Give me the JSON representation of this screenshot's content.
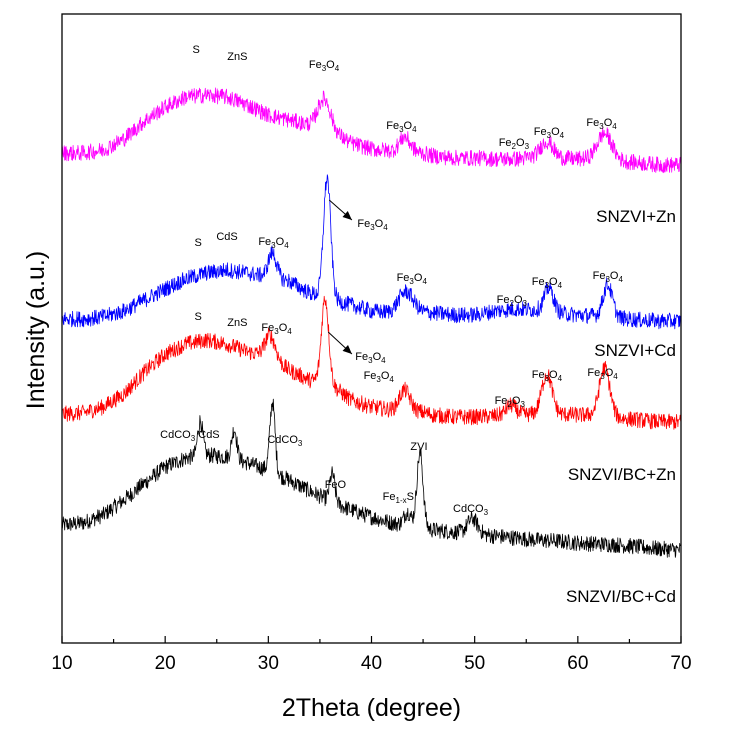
{
  "chart_data": {
    "type": "line",
    "xlabel": "2Theta (degree)",
    "ylabel": "Intensity (a.u.)",
    "xlim": [
      10,
      70
    ],
    "x_ticks": [
      10,
      20,
      30,
      40,
      50,
      60,
      70
    ],
    "x_tick_labels": [
      "10",
      "20",
      "30",
      "40",
      "50",
      "60",
      "70"
    ],
    "y_scale": "arbitrary, stacked offsets",
    "grid": false,
    "legend": "none (series labelled at right end of each curve)",
    "series": [
      {
        "name": "SNZVI/BC+Cd",
        "color": "#000000",
        "points": [
          [
            10,
            30
          ],
          [
            12,
            32
          ],
          [
            14,
            40
          ],
          [
            16,
            55
          ],
          [
            18,
            72
          ],
          [
            20,
            88
          ],
          [
            22,
            97
          ],
          [
            24,
            100
          ],
          [
            26,
            98
          ],
          [
            28,
            92
          ],
          [
            30,
            85
          ],
          [
            32,
            75
          ],
          [
            34,
            64
          ],
          [
            36,
            54
          ],
          [
            38,
            45
          ],
          [
            40,
            38
          ],
          [
            42,
            32
          ],
          [
            44,
            28
          ],
          [
            46,
            25
          ],
          [
            48,
            23
          ],
          [
            50,
            21
          ],
          [
            52,
            19
          ],
          [
            54,
            17
          ],
          [
            56,
            15
          ],
          [
            58,
            14
          ],
          [
            60,
            12
          ],
          [
            62,
            11
          ],
          [
            64,
            10
          ],
          [
            66,
            8
          ],
          [
            68,
            6
          ],
          [
            70,
            5
          ]
        ],
        "peaks": [
          {
            "x": 23.4,
            "h": 35,
            "w": 0.25
          },
          {
            "x": 26.7,
            "h": 30,
            "w": 0.25
          },
          {
            "x": 30.4,
            "h": 70,
            "w": 0.25
          },
          {
            "x": 36.2,
            "h": 28,
            "w": 0.25
          },
          {
            "x": 43.5,
            "h": 14,
            "w": 0.35
          },
          {
            "x": 44.7,
            "h": 75,
            "w": 0.3
          },
          {
            "x": 49.8,
            "h": 15,
            "w": 0.5
          }
        ],
        "annotations": [
          {
            "parts": [
              [
                "CdCO",
                false
              ],
              [
                "3",
                true
              ],
              [
                " CdS",
                false
              ]
            ],
            "x": 22.4,
            "y": 117
          },
          {
            "parts": [
              [
                "CdCO",
                false
              ],
              [
                "3",
                true
              ]
            ],
            "x": 31.6,
            "y": 112
          },
          {
            "parts": [
              [
                "FeO",
                false
              ]
            ],
            "x": 36.5,
            "y": 67
          },
          {
            "parts": [
              [
                "ZVI",
                false
              ]
            ],
            "x": 44.6,
            "y": 105
          },
          {
            "parts": [
              [
                "Fe",
                false
              ],
              [
                "1-x",
                true
              ],
              [
                "S",
                false
              ]
            ],
            "x": 42.6,
            "y": 55
          },
          {
            "parts": [
              [
                "CdCO",
                false
              ],
              [
                "3",
                true
              ]
            ],
            "x": 49.6,
            "y": 43
          }
        ]
      },
      {
        "name": "SNZVI/BC+Zn",
        "color": "#ff0000",
        "points": [
          [
            10,
            18
          ],
          [
            12,
            19
          ],
          [
            14,
            25
          ],
          [
            16,
            38
          ],
          [
            18,
            60
          ],
          [
            20,
            78
          ],
          [
            22,
            88
          ],
          [
            24,
            92
          ],
          [
            26,
            88
          ],
          [
            28,
            80
          ],
          [
            30,
            76
          ],
          [
            32,
            62
          ],
          [
            34,
            52
          ],
          [
            36,
            48
          ],
          [
            38,
            32
          ],
          [
            40,
            25
          ],
          [
            42,
            22
          ],
          [
            44,
            22
          ],
          [
            46,
            17
          ],
          [
            48,
            15
          ],
          [
            50,
            15
          ],
          [
            52,
            16
          ],
          [
            54,
            17
          ],
          [
            56,
            18
          ],
          [
            58,
            18
          ],
          [
            60,
            17
          ],
          [
            62,
            17
          ],
          [
            64,
            14
          ],
          [
            66,
            12
          ],
          [
            68,
            10
          ],
          [
            70,
            10
          ]
        ],
        "peaks": [
          {
            "x": 30.2,
            "h": 22,
            "w": 0.5
          },
          {
            "x": 35.5,
            "h": 85,
            "w": 0.35
          },
          {
            "x": 43.2,
            "h": 20,
            "w": 0.5
          },
          {
            "x": 53.5,
            "h": 10,
            "w": 0.5
          },
          {
            "x": 57.0,
            "h": 40,
            "w": 0.5
          },
          {
            "x": 62.6,
            "h": 48,
            "w": 0.5
          }
        ],
        "annotations": [
          {
            "parts": [
              [
                "S",
                false
              ]
            ],
            "x": 23.2,
            "y": 112
          },
          {
            "parts": [
              [
                "ZnS",
                false
              ]
            ],
            "x": 27.0,
            "y": 106
          },
          {
            "parts": [
              [
                "Fe",
                false
              ],
              [
                "3",
                true
              ],
              [
                "O",
                false
              ],
              [
                "4",
                true
              ]
            ],
            "x": 30.8,
            "y": 101
          },
          {
            "parts": [
              [
                "Fe",
                false
              ],
              [
                "3",
                true
              ],
              [
                "O",
                false
              ],
              [
                "4",
                true
              ]
            ],
            "x": 40.7,
            "y": 53
          },
          {
            "parts": [
              [
                "Fe",
                false
              ],
              [
                "2",
                true
              ],
              [
                "O",
                false
              ],
              [
                "3",
                true
              ]
            ],
            "x": 53.4,
            "y": 28
          },
          {
            "parts": [
              [
                "Fe",
                false
              ],
              [
                "3",
                true
              ],
              [
                "O",
                false
              ],
              [
                "4",
                true
              ]
            ],
            "x": 57.0,
            "y": 54
          },
          {
            "parts": [
              [
                "Fe",
                false
              ],
              [
                "3",
                true
              ],
              [
                "O",
                false
              ],
              [
                "4",
                true
              ]
            ],
            "x": 62.4,
            "y": 56
          }
        ],
        "arrow": {
          "from": [
            35.8,
            100
          ],
          "to": [
            38.1,
            78
          ],
          "label": [
            [
              "Fe",
              false
            ],
            [
              "3",
              true
            ],
            [
              "O",
              false
            ],
            [
              "4",
              true
            ]
          ],
          "label_at": [
            39.9,
            72
          ]
        }
      },
      {
        "name": "SNZVI+Cd",
        "color": "#0000ff",
        "points": [
          [
            10,
            6
          ],
          [
            12,
            6
          ],
          [
            14,
            8
          ],
          [
            16,
            14
          ],
          [
            18,
            25
          ],
          [
            20,
            36
          ],
          [
            22,
            46
          ],
          [
            24,
            52
          ],
          [
            26,
            55
          ],
          [
            28,
            52
          ],
          [
            30,
            48
          ],
          [
            32,
            44
          ],
          [
            34,
            32
          ],
          [
            36,
            26
          ],
          [
            38,
            20
          ],
          [
            40,
            14
          ],
          [
            42,
            12
          ],
          [
            44,
            14
          ],
          [
            46,
            12
          ],
          [
            48,
            10
          ],
          [
            50,
            10
          ],
          [
            52,
            14
          ],
          [
            54,
            16
          ],
          [
            56,
            15
          ],
          [
            58,
            12
          ],
          [
            60,
            10
          ],
          [
            62,
            9
          ],
          [
            64,
            7
          ],
          [
            66,
            5
          ],
          [
            68,
            4
          ],
          [
            70,
            4
          ]
        ],
        "peaks": [
          {
            "x": 30.4,
            "h": 25,
            "w": 0.4
          },
          {
            "x": 35.7,
            "h": 120,
            "w": 0.35
          },
          {
            "x": 43.3,
            "h": 20,
            "w": 0.7
          },
          {
            "x": 57.2,
            "h": 24,
            "w": 0.45
          },
          {
            "x": 62.9,
            "h": 32,
            "w": 0.45
          }
        ],
        "annotations": [
          {
            "parts": [
              [
                "S",
                false
              ]
            ],
            "x": 23.2,
            "y": 79
          },
          {
            "parts": [
              [
                "CdS",
                false
              ]
            ],
            "x": 26.0,
            "y": 85
          },
          {
            "parts": [
              [
                "Fe",
                false
              ],
              [
                "3",
                true
              ],
              [
                "O",
                false
              ],
              [
                "4",
                true
              ]
            ],
            "x": 30.5,
            "y": 80
          },
          {
            "parts": [
              [
                "Fe",
                false
              ],
              [
                "3",
                true
              ],
              [
                "O",
                false
              ],
              [
                "4",
                true
              ]
            ],
            "x": 43.9,
            "y": 44
          },
          {
            "parts": [
              [
                "Fe",
                false
              ],
              [
                "2",
                true
              ],
              [
                "O",
                false
              ],
              [
                "3",
                true
              ]
            ],
            "x": 53.6,
            "y": 22
          },
          {
            "parts": [
              [
                "Fe",
                false
              ],
              [
                "3",
                true
              ],
              [
                "O",
                false
              ],
              [
                "4",
                true
              ]
            ],
            "x": 57.0,
            "y": 40
          },
          {
            "parts": [
              [
                "Fe",
                false
              ],
              [
                "3",
                true
              ],
              [
                "O",
                false
              ],
              [
                "4",
                true
              ]
            ],
            "x": 62.9,
            "y": 46
          }
        ],
        "arrow": {
          "from": [
            35.9,
            125
          ],
          "to": [
            38.1,
            105
          ],
          "label": [
            [
              "Fe",
              false
            ],
            [
              "3",
              true
            ],
            [
              "O",
              false
            ],
            [
              "4",
              true
            ]
          ],
          "label_at": [
            40.1,
            98
          ]
        }
      },
      {
        "name": "SNZVI+Zn",
        "color": "#ff00ff",
        "points": [
          [
            10,
            22
          ],
          [
            12,
            22
          ],
          [
            14,
            25
          ],
          [
            16,
            36
          ],
          [
            18,
            54
          ],
          [
            20,
            68
          ],
          [
            22,
            78
          ],
          [
            24,
            80
          ],
          [
            26,
            78
          ],
          [
            28,
            70
          ],
          [
            30,
            60
          ],
          [
            32,
            55
          ],
          [
            34,
            50
          ],
          [
            36,
            45
          ],
          [
            38,
            32
          ],
          [
            40,
            26
          ],
          [
            42,
            24
          ],
          [
            44,
            24
          ],
          [
            46,
            19
          ],
          [
            48,
            17
          ],
          [
            50,
            17
          ],
          [
            52,
            16
          ],
          [
            54,
            16
          ],
          [
            56,
            18
          ],
          [
            58,
            17
          ],
          [
            60,
            16
          ],
          [
            62,
            16
          ],
          [
            64,
            14
          ],
          [
            66,
            12
          ],
          [
            68,
            10
          ],
          [
            70,
            10
          ]
        ],
        "peaks": [
          {
            "x": 35.4,
            "h": 30,
            "w": 0.6
          },
          {
            "x": 43.2,
            "h": 14,
            "w": 0.5
          },
          {
            "x": 57.0,
            "h": 16,
            "w": 0.6
          },
          {
            "x": 62.6,
            "h": 26,
            "w": 0.7
          }
        ],
        "annotations": [
          {
            "parts": [
              [
                "S",
                false
              ]
            ],
            "x": 23.0,
            "y": 122
          },
          {
            "parts": [
              [
                "ZnS",
                false
              ]
            ],
            "x": 27.0,
            "y": 115
          },
          {
            "parts": [
              [
                "Fe",
                false
              ],
              [
                "3",
                true
              ],
              [
                "O",
                false
              ],
              [
                "4",
                true
              ]
            ],
            "x": 35.4,
            "y": 107
          },
          {
            "parts": [
              [
                "Fe",
                false
              ],
              [
                "3",
                true
              ],
              [
                "O",
                false
              ],
              [
                "4",
                true
              ]
            ],
            "x": 42.9,
            "y": 46
          },
          {
            "parts": [
              [
                "Fe",
                false
              ],
              [
                "2",
                true
              ],
              [
                "O",
                false
              ],
              [
                "3",
                true
              ]
            ],
            "x": 53.8,
            "y": 29
          },
          {
            "parts": [
              [
                "Fe",
                false
              ],
              [
                "3",
                true
              ],
              [
                "O",
                false
              ],
              [
                "4",
                true
              ]
            ],
            "x": 57.2,
            "y": 40
          },
          {
            "parts": [
              [
                "Fe",
                false
              ],
              [
                "3",
                true
              ],
              [
                "O",
                false
              ],
              [
                "4",
                true
              ]
            ],
            "x": 62.3,
            "y": 49
          }
        ]
      }
    ]
  }
}
